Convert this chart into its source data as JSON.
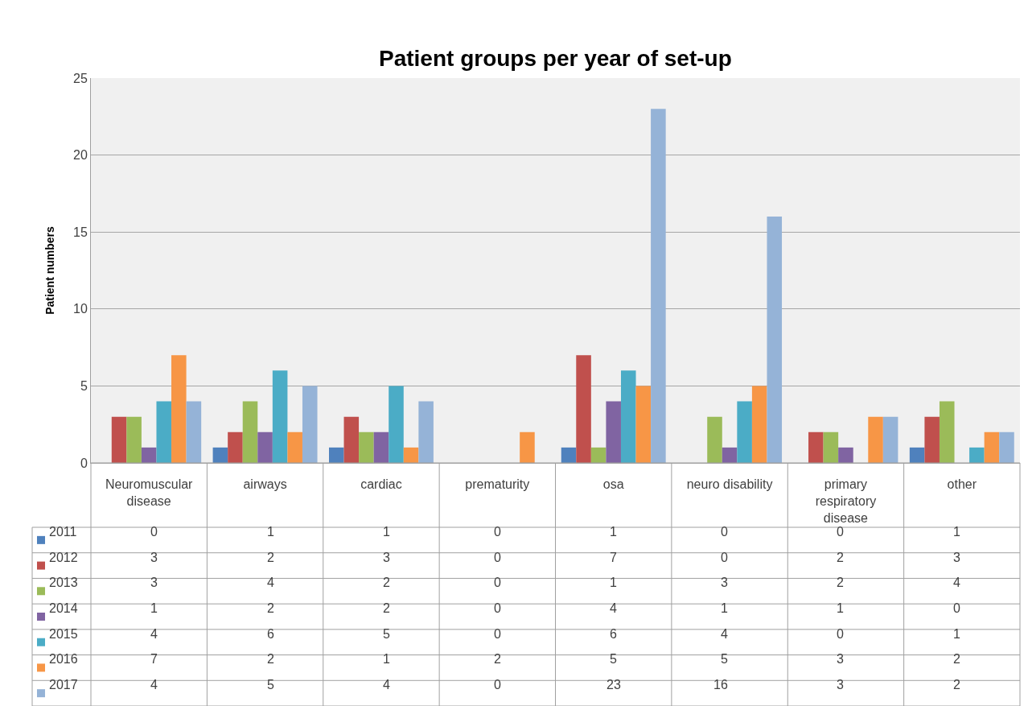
{
  "chart_data": {
    "type": "bar",
    "title": "Patient groups per year of set-up",
    "ylabel": "Patient numbers",
    "categories": [
      "Neuromuscular disease",
      "airways",
      "cardiac",
      "prematurity",
      "osa",
      "neuro disability",
      "primary respiratory disease",
      "other"
    ],
    "series": [
      {
        "name": "2011",
        "color": "#4f81bd",
        "values": [
          0,
          1,
          1,
          0,
          1,
          0,
          0,
          1
        ]
      },
      {
        "name": "2012",
        "color": "#c0504d",
        "values": [
          3,
          2,
          3,
          0,
          7,
          0,
          2,
          3
        ]
      },
      {
        "name": "2013",
        "color": "#9bbb59",
        "values": [
          3,
          4,
          2,
          0,
          1,
          3,
          2,
          4
        ]
      },
      {
        "name": "2014",
        "color": "#8064a2",
        "values": [
          1,
          2,
          2,
          0,
          4,
          1,
          1,
          0
        ]
      },
      {
        "name": "2015",
        "color": "#4bacc6",
        "values": [
          4,
          6,
          5,
          0,
          6,
          4,
          0,
          1
        ]
      },
      {
        "name": "2016",
        "color": "#f79646",
        "values": [
          7,
          2,
          1,
          2,
          5,
          5,
          3,
          2
        ]
      },
      {
        "name": "2017",
        "color": "#95b3d7",
        "values": [
          4,
          5,
          4,
          0,
          23,
          16,
          3,
          2
        ]
      }
    ],
    "ylim": [
      0,
      25
    ],
    "yticks": [
      0,
      5,
      10,
      15,
      20,
      25
    ],
    "grid": "y",
    "data_labels": true,
    "legend": "bottom left"
  }
}
